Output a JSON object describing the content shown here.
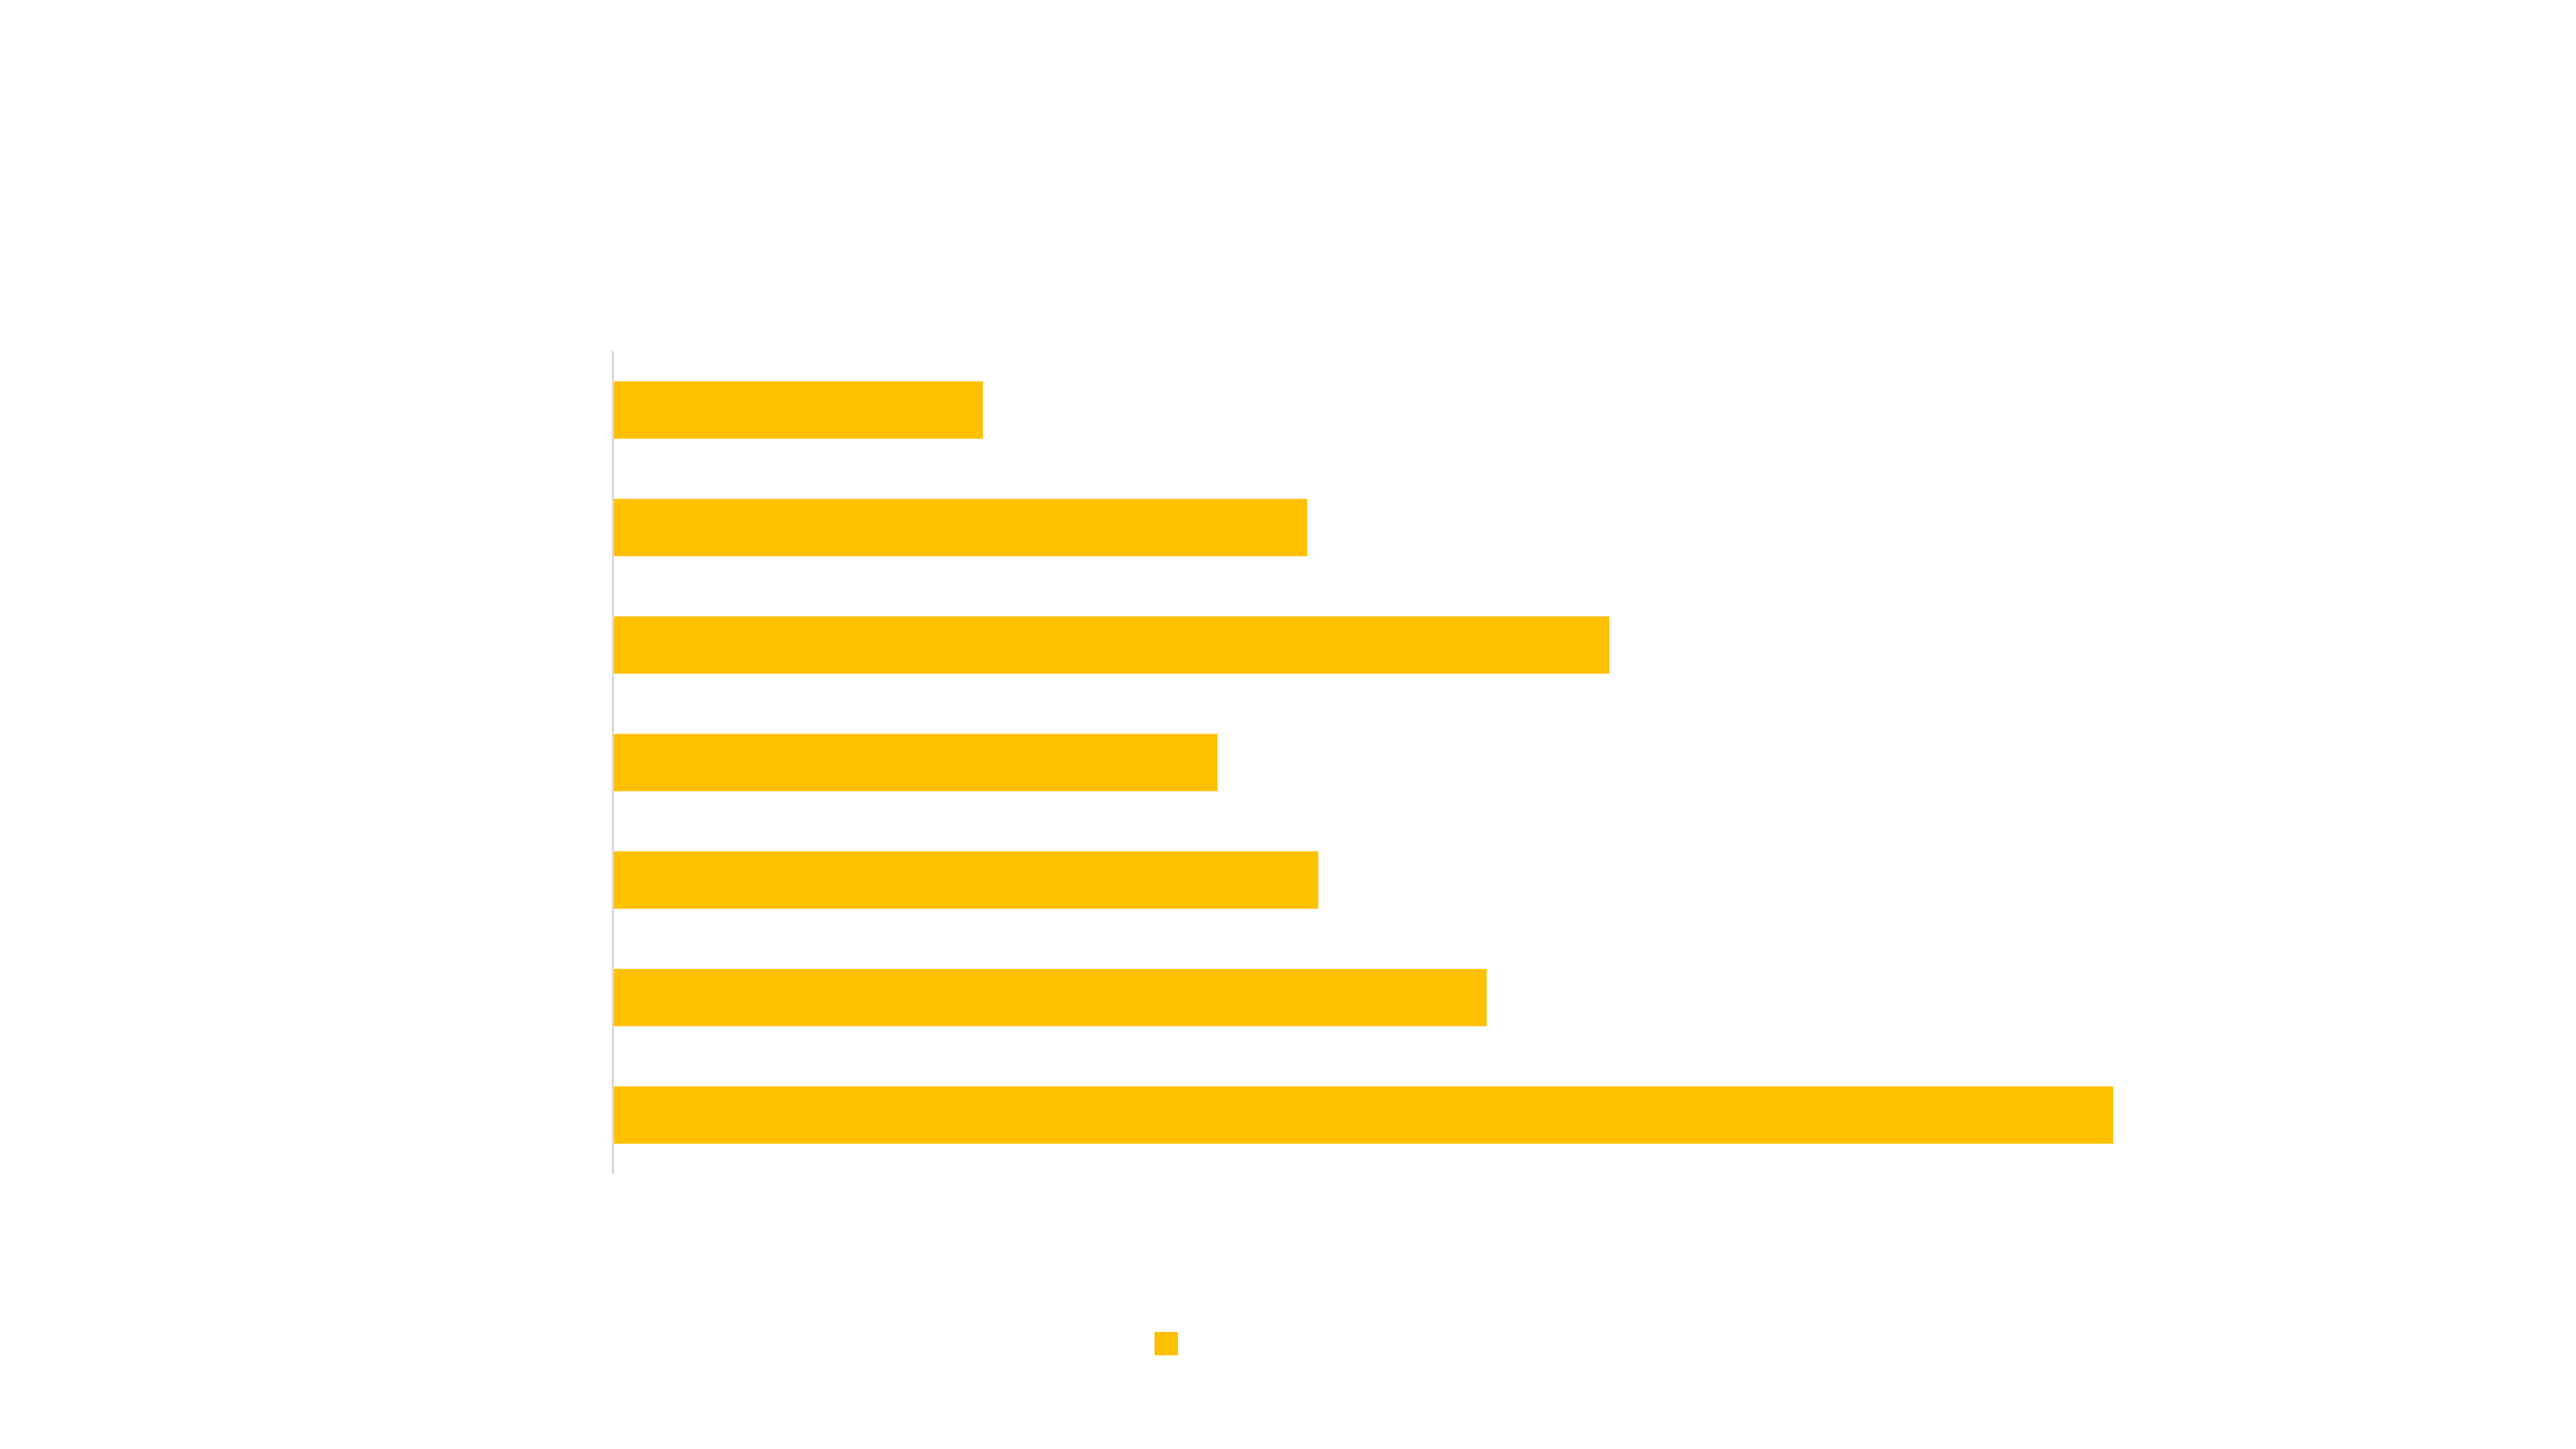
{
  "chart_data": {
    "type": "bar",
    "orientation": "horizontal",
    "title": "",
    "xlabel": "",
    "ylabel": "",
    "categories": [
      "",
      "",
      "",
      "",
      "",
      "",
      ""
    ],
    "series": [
      {
        "color": "#FFC000",
        "values": [
          23.5,
          44.1,
          63.3,
          38.4,
          44.8,
          55.5,
          95.3
        ]
      }
    ],
    "xlim": [
      0,
      100
    ],
    "grid": false,
    "legend": {
      "position": "bottom",
      "marker_color": "#FFC000"
    },
    "axis_color": "#D9D9D9"
  }
}
